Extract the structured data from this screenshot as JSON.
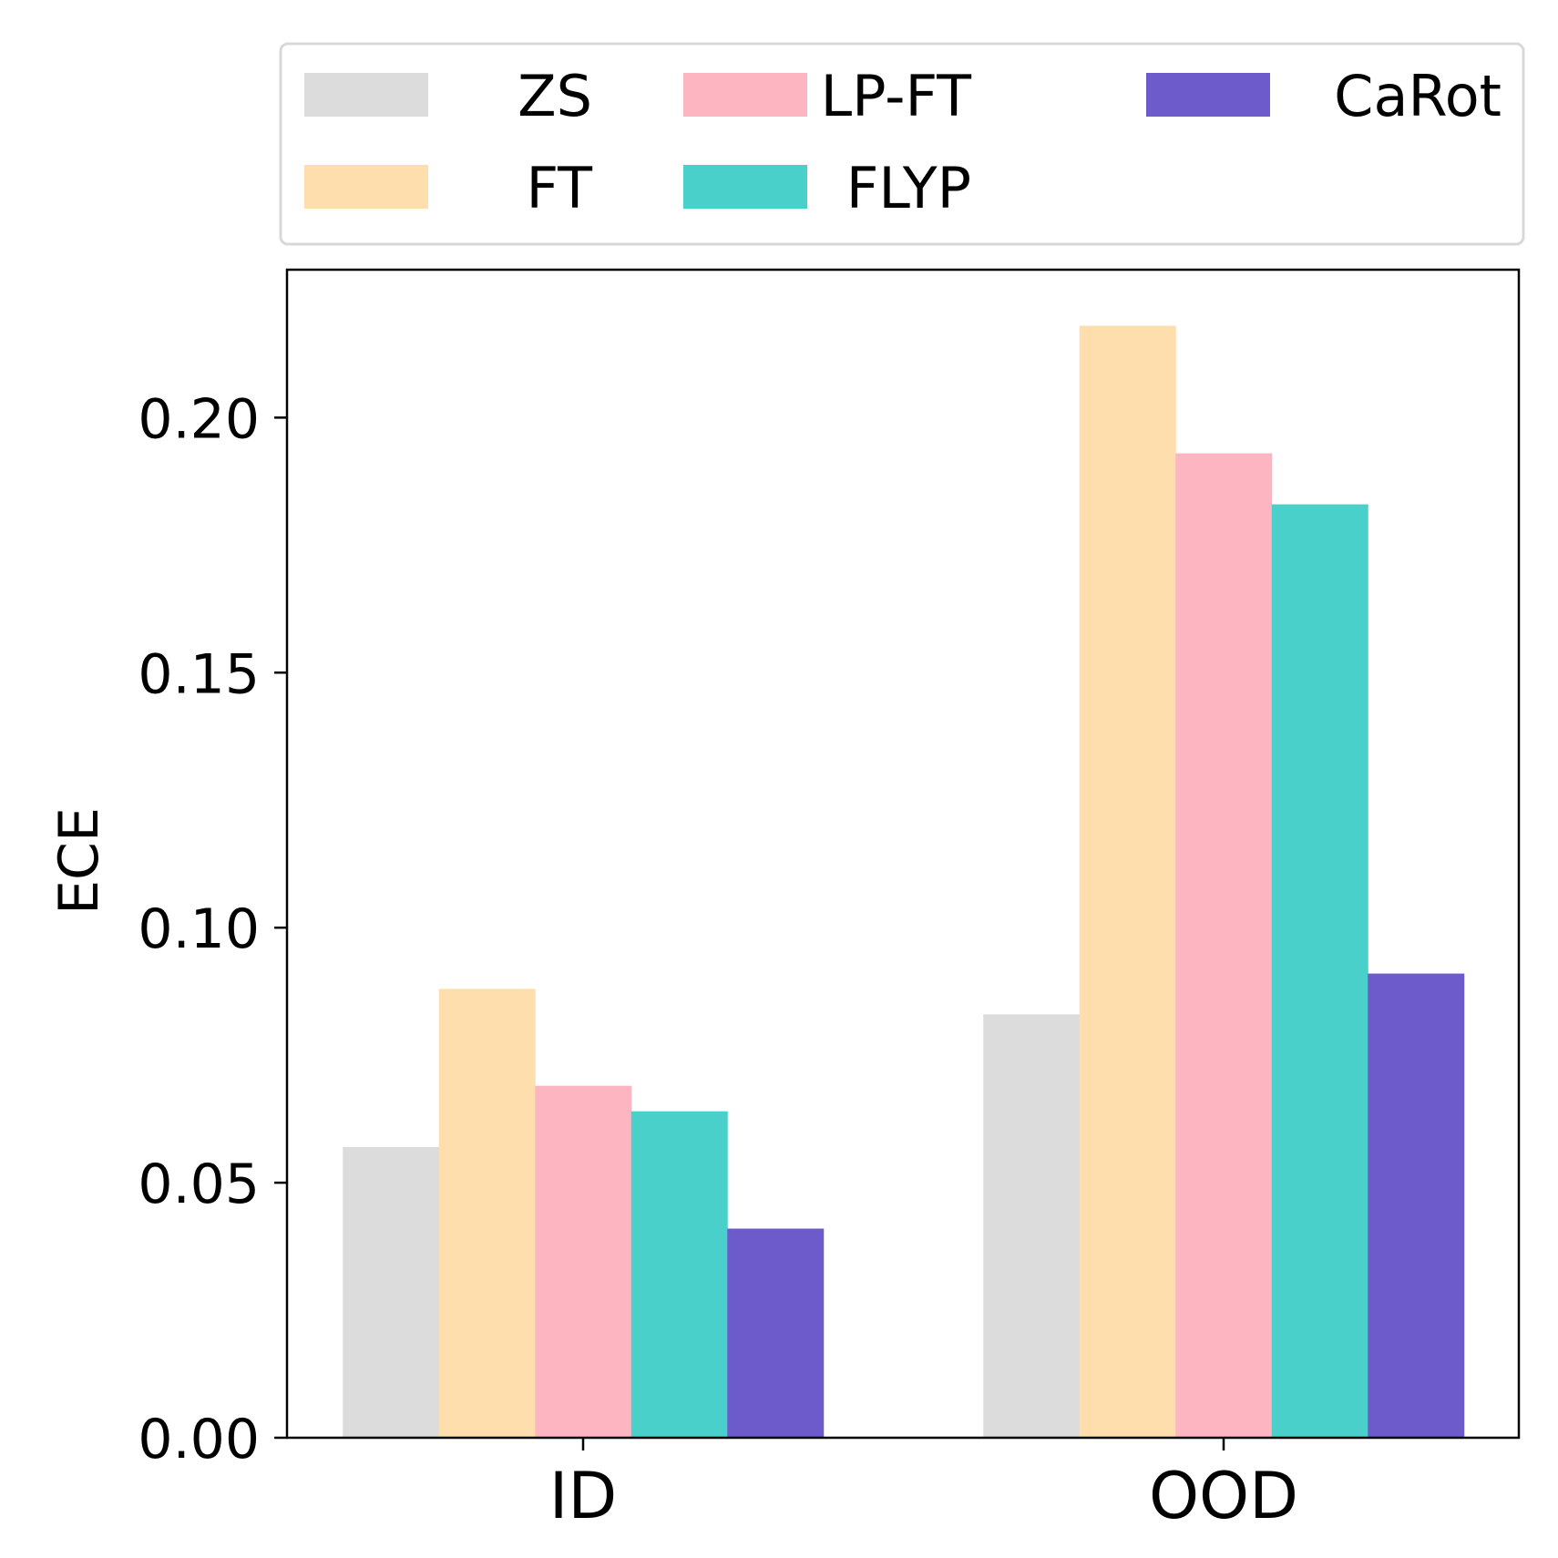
{
  "chart_data": {
    "type": "bar",
    "categories": [
      "ID",
      "OOD"
    ],
    "series": [
      {
        "name": "ZS",
        "color": "#dcdcdc",
        "values": [
          0.057,
          0.083
        ]
      },
      {
        "name": "FT",
        "color": "#fddeac",
        "values": [
          0.088,
          0.218
        ]
      },
      {
        "name": "LP-FT",
        "color": "#fdb5c1",
        "values": [
          0.069,
          0.193
        ]
      },
      {
        "name": "FLYP",
        "color": "#4ad0ca",
        "values": [
          0.064,
          0.183
        ]
      },
      {
        "name": "CaRot",
        "color": "#6d5bcb",
        "values": [
          0.041,
          0.091
        ]
      }
    ],
    "title": "",
    "xlabel": "",
    "ylabel": "ECE",
    "ylim": [
      0,
      0.229
    ],
    "yticks": [
      0.0,
      0.05,
      0.1,
      0.15,
      0.2
    ],
    "ytick_labels": [
      "0.00",
      "0.05",
      "0.10",
      "0.15",
      "0.20"
    ],
    "legend": {
      "position": "top",
      "columns": 3
    },
    "grid": false
  }
}
